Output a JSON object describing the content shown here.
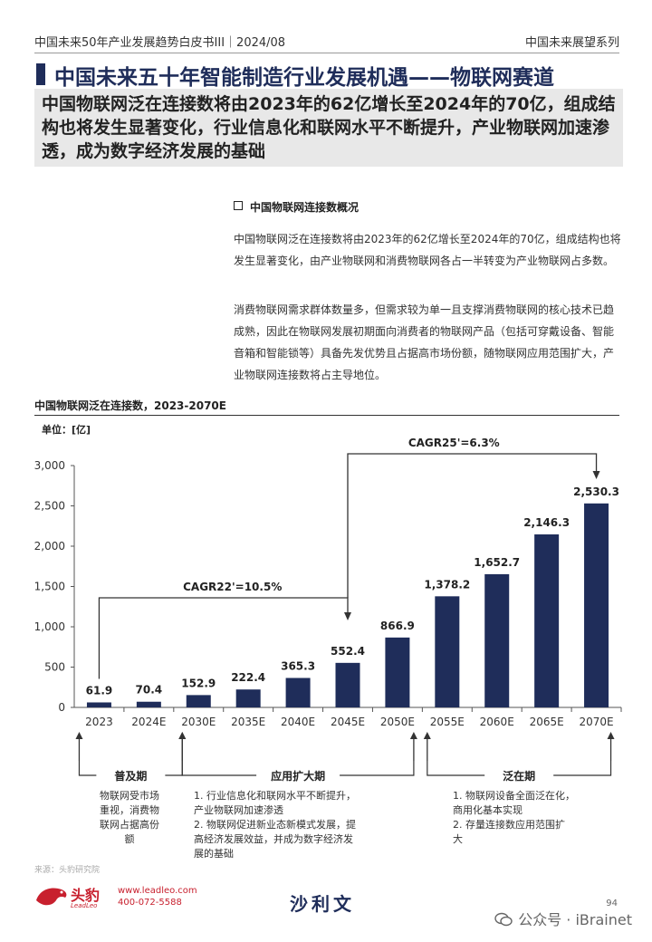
{
  "header": {
    "left": "中国未来50年产业发展趋势白皮书III｜2024/08",
    "right": "中国未来展望系列"
  },
  "title": "中国未来五十年智能制造行业发展机遇——物联网赛道",
  "subtitle": "中国物联网泛在连接数将由2023年的62亿增长至2024年的70亿，组成结构也将发生显著变化，行业信息化和联网水平不断提升，产业物联网加速渗透，成为数字经济发展的基础",
  "section": {
    "heading": "中国物联网连接数概况",
    "para1": "中国物联网泛在连接数将由2023年的62亿增长至2024年的70亿，组成结构也将发生显著变化，由产业物联网和消费物联网各占一半转变为产业物联网占多数。",
    "para2": "消费物联网需求群体数量多，但需求较为单一且支撑消费物联网的核心技术已趋成熟，因此在物联网发展初期面向消费者的物联网产品（包括可穿戴设备、智能音箱和智能锁等）具备先发优势且占据高市场份额，随物联网应用范围扩大，产业物联网连接数将占主导地位。"
  },
  "chart_data": {
    "type": "bar",
    "title": "中国物联网泛在连接数，2023-2070E",
    "unit_label": "单位：[亿]",
    "categories": [
      "2023",
      "2024E",
      "2030E",
      "2035E",
      "2040E",
      "2045E",
      "2050E",
      "2055E",
      "2060E",
      "2065E",
      "2070E"
    ],
    "values": [
      61.9,
      70.4,
      152.9,
      222.4,
      365.3,
      552.4,
      866.9,
      1378.2,
      1652.7,
      2146.3,
      2530.3
    ],
    "value_labels": [
      "61.9",
      "70.4",
      "152.9",
      "222.4",
      "365.3",
      "552.4",
      "866.9",
      "1,378.2",
      "1,652.7",
      "2,146.3",
      "2,530.3"
    ],
    "ylim": [
      0,
      3000
    ],
    "yticks": [
      0,
      500,
      1000,
      1500,
      2000,
      2500,
      3000
    ],
    "ytick_labels": [
      "0",
      "500",
      "1,000",
      "1,500",
      "2,000",
      "2,500",
      "3,000"
    ],
    "grid": false,
    "bar_color": "#1f2d5a",
    "annotations": [
      {
        "label": "CAGR22'=10.5%",
        "from": "2023",
        "to": "2045E"
      },
      {
        "label": "CAGR25'=6.3%",
        "from": "2045E",
        "to": "2070E"
      }
    ],
    "phases": [
      {
        "name": "普及期",
        "from": "2023",
        "to": "2030E",
        "notes": [
          "物联网受市场",
          "重视，消费物",
          "联网占据高份",
          "额"
        ]
      },
      {
        "name": "应用扩大期",
        "from": "2030E",
        "to": "2050E",
        "notes": [
          "1.  行业信息化和联网水平不断提升，",
          "    产业物联网加速渗透",
          "2.  物联网促进新业态新模式发展，提",
          "    高经济发展效益，并成为数字经济发",
          "    展的基础"
        ]
      },
      {
        "name": "泛在期",
        "from": "2055E",
        "to": "2070E",
        "notes": [
          "1.  物联网设备全面泛在化，",
          "    商用化基本实现",
          "2.  存量连接数应用范围扩",
          "    大"
        ]
      }
    ]
  },
  "footer": {
    "source": "来源：头豹研究院",
    "logo_text": "头豹",
    "logo_sub": "LeadLeo",
    "website": "www.leadleo.com",
    "phone": "400-072-5588",
    "center_logo": "沙利文",
    "page": "94",
    "watermark": "公众号 · iBrainet"
  },
  "colors": {
    "navy": "#1f2d5a",
    "brand_red": "#c8202e"
  }
}
